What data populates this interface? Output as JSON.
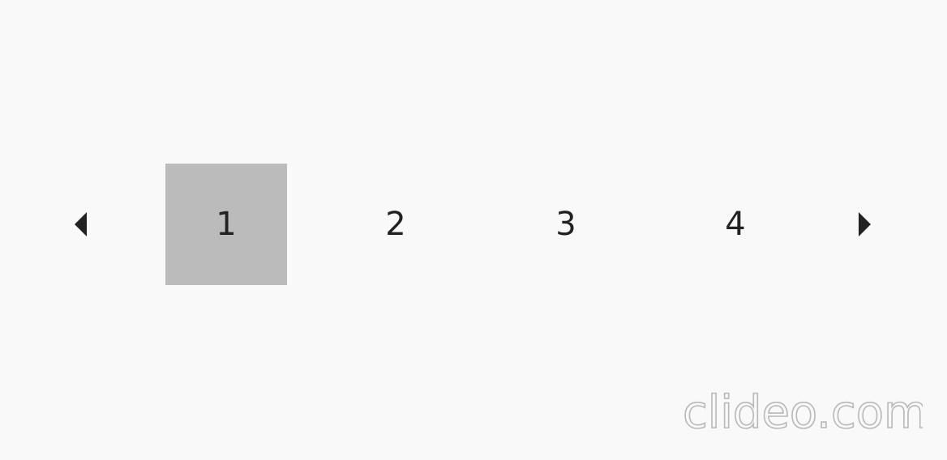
{
  "pagination": {
    "prev_icon": "caret-left-icon",
    "next_icon": "caret-right-icon",
    "pages": [
      "1",
      "2",
      "3",
      "4"
    ],
    "current_page": "1",
    "active_color": "#bbbbbb",
    "text_color": "#222222"
  },
  "watermark": {
    "text": "clideo.com",
    "stroke_color": "#b8b8b8"
  },
  "background_color": "#f9f9f9"
}
